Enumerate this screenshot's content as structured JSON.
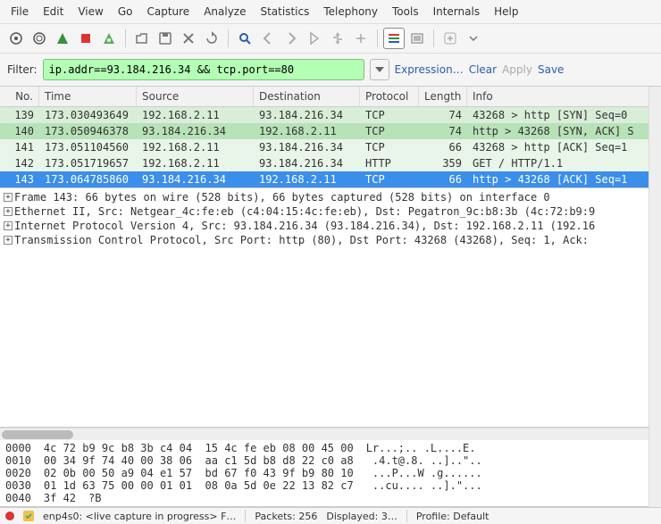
{
  "menu": {
    "items": [
      "File",
      "Edit",
      "View",
      "Go",
      "Capture",
      "Analyze",
      "Statistics",
      "Telephony",
      "Tools",
      "Internals",
      "Help"
    ]
  },
  "toolbar": {
    "icons": [
      {
        "name": "list-icon",
        "svg": "target"
      },
      {
        "name": "target-icon",
        "svg": "target2"
      },
      {
        "name": "fin-icon",
        "svg": "fin"
      },
      {
        "name": "stop-icon",
        "svg": "stop"
      },
      {
        "name": "restart-icon",
        "svg": "restart"
      },
      {
        "sep": true
      },
      {
        "name": "open-icon",
        "svg": "open"
      },
      {
        "name": "save-icon",
        "svg": "save"
      },
      {
        "name": "close-icon",
        "svg": "close-x"
      },
      {
        "name": "reload-icon",
        "svg": "reload"
      },
      {
        "sep": true
      },
      {
        "name": "find-icon",
        "svg": "find"
      },
      {
        "name": "back-icon",
        "svg": "arrow-l"
      },
      {
        "name": "fwd-icon",
        "svg": "arrow-r"
      },
      {
        "name": "jump-icon",
        "svg": "jump"
      },
      {
        "name": "first-icon",
        "svg": "first"
      },
      {
        "name": "last-icon",
        "svg": "last"
      },
      {
        "sep": true
      },
      {
        "name": "colorize-icon",
        "svg": "colorize",
        "active": true
      },
      {
        "name": "autoscroll-icon",
        "svg": "autoscroll"
      },
      {
        "sep": true
      },
      {
        "name": "zoom-icon",
        "svg": "plus"
      },
      {
        "name": "dropdown-icon",
        "svg": "chev"
      }
    ]
  },
  "filter": {
    "label": "Filter:",
    "value": "ip.addr==93.184.216.34 && tcp.port==80",
    "links": {
      "expression": "Expression…",
      "clear": "Clear",
      "apply": "Apply",
      "save": "Save"
    }
  },
  "packets": {
    "columns": [
      "No.",
      "Time",
      "Source",
      "Destination",
      "Protocol",
      "Length",
      "Info"
    ],
    "rows": [
      {
        "no": "139",
        "time": "173.030493649",
        "src": "192.168.2.11",
        "dst": "93.184.216.34",
        "proto": "TCP",
        "len": "74",
        "info": "43268 > http [SYN]  Seq=0",
        "cls": "row-syn"
      },
      {
        "no": "140",
        "time": "173.050946378",
        "src": "93.184.216.34",
        "dst": "192.168.2.11",
        "proto": "TCP",
        "len": "74",
        "info": "http > 43268 [SYN, ACK]  S",
        "cls": "row-syn-sel"
      },
      {
        "no": "141",
        "time": "173.051104560",
        "src": "192.168.2.11",
        "dst": "93.184.216.34",
        "proto": "TCP",
        "len": "66",
        "info": "43268 > http [ACK]  Seq=1",
        "cls": "row-ack"
      },
      {
        "no": "142",
        "time": "173.051719657",
        "src": "192.168.2.11",
        "dst": "93.184.216.34",
        "proto": "HTTP",
        "len": "359",
        "info": "GET  /  HTTP/1.1",
        "cls": "row-http"
      },
      {
        "no": "143",
        "time": "173.064785860",
        "src": "93.184.216.34",
        "dst": "192.168.2.11",
        "proto": "TCP",
        "len": "66",
        "info": "http > 43268 [ACK]  Seq=1",
        "cls": "row-selected"
      }
    ]
  },
  "details": {
    "lines": [
      "Frame 143: 66 bytes on wire (528 bits), 66 bytes captured (528 bits) on interface 0",
      "Ethernet II, Src: Netgear_4c:fe:eb (c4:04:15:4c:fe:eb), Dst: Pegatron_9c:b8:3b (4c:72:b9:9",
      "Internet Protocol Version 4, Src: 93.184.216.34 (93.184.216.34), Dst: 192.168.2.11 (192.16",
      "Transmission Control Protocol, Src Port: http (80), Dst Port: 43268 (43268), Seq: 1, Ack:"
    ]
  },
  "hex": {
    "rows": [
      {
        "off": "0000",
        "b": "4c 72 b9 9c b8 3b c4 04  15 4c fe eb 08 00 45 00",
        "a": "Lr...;.. .L....E."
      },
      {
        "off": "0010",
        "b": "00 34 9f 74 40 00 38 06  aa c1 5d b8 d8 22 c0 a8",
        "a": " .4.t@.8. ..]..\"..  "
      },
      {
        "off": "0020",
        "b": "02 0b 00 50 a9 04 e1 57  bd 67 f0 43 9f b9 80 10",
        "a": " ...P...W .g......"
      },
      {
        "off": "0030",
        "b": "01 1d 63 75 00 00 01 01  08 0a 5d 0e 22 13 82 c7",
        "a": " ..cu.... ..].\"..."
      },
      {
        "off": "0040",
        "b": "3f 42",
        "a": "?B"
      }
    ]
  },
  "status": {
    "iface": "enp4s0: <live capture in progress> F…",
    "packets": "Packets: 256",
    "displayed": "Displayed: 3…",
    "profile": "Profile: Default"
  },
  "colors": {
    "filter_bg": "#b3ffb3",
    "selected_row": "#3b8eea"
  }
}
